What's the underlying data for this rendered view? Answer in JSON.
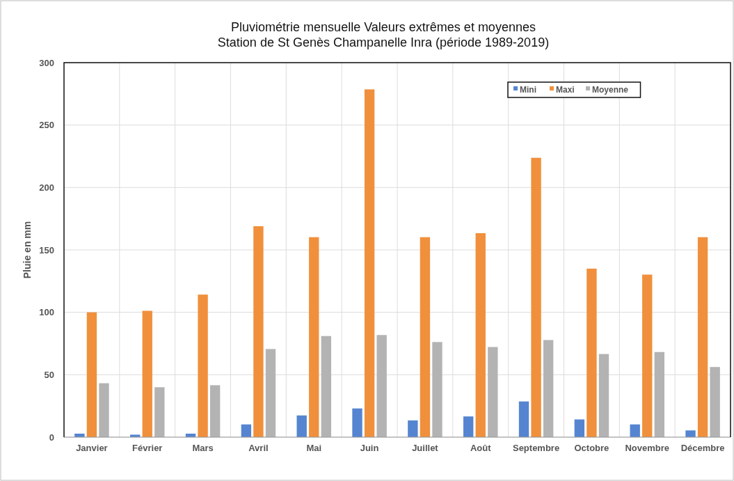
{
  "chart_data": {
    "type": "bar",
    "title": "Pluviométrie mensuelle Valeurs extrêmes et moyennes\nStation de St Genès Champanelle Inra (période 1989-2019)",
    "ylabel": "Pluie en mm",
    "categories": [
      "Janvier",
      "Février",
      "Mars",
      "Avril",
      "Mai",
      "Juin",
      "Juillet",
      "Août",
      "Septembre",
      "Octobre",
      "Novembre",
      "Décembre"
    ],
    "series": [
      {
        "name": "Mini",
        "color": "#5585d0",
        "values": [
          2.8,
          2,
          2.8,
          10.2,
          17.4,
          23,
          13.4,
          16.6,
          28.6,
          14.2,
          10.2,
          5.4
        ]
      },
      {
        "name": "Maxi",
        "color": "#f0903c",
        "values": [
          100,
          101.2,
          114.2,
          169,
          160.2,
          278.6,
          160.2,
          163.4,
          223.8,
          135,
          130.2,
          160.2
        ]
      },
      {
        "name": "Moyenne",
        "color": "#b3b3b3",
        "values": [
          43.2,
          40,
          41.6,
          70.6,
          81,
          81.8,
          76.2,
          72.2,
          77.8,
          66.6,
          68.2,
          56.2
        ]
      }
    ],
    "ylim": [
      0,
      300
    ],
    "yticks": [
      0,
      50,
      100,
      150,
      200,
      250,
      300
    ],
    "grid": true,
    "legend": "top right"
  }
}
